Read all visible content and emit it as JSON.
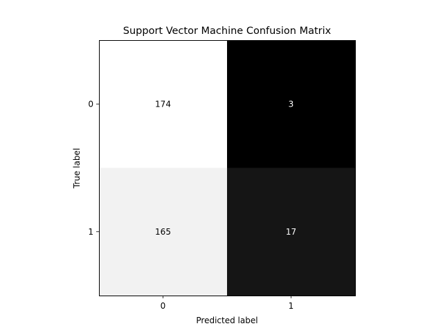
{
  "chart_data": {
    "type": "heatmap",
    "title": "Support Vector Machine Confusion Matrix",
    "xlabel": "Predicted label",
    "ylabel": "True label",
    "x_categories": [
      "0",
      "1"
    ],
    "y_categories": [
      "0",
      "1"
    ],
    "matrix": [
      [
        174,
        3
      ],
      [
        165,
        17
      ]
    ],
    "colormap": "gray",
    "value_range": [
      3,
      174
    ],
    "colorbar": false,
    "grid": false
  }
}
